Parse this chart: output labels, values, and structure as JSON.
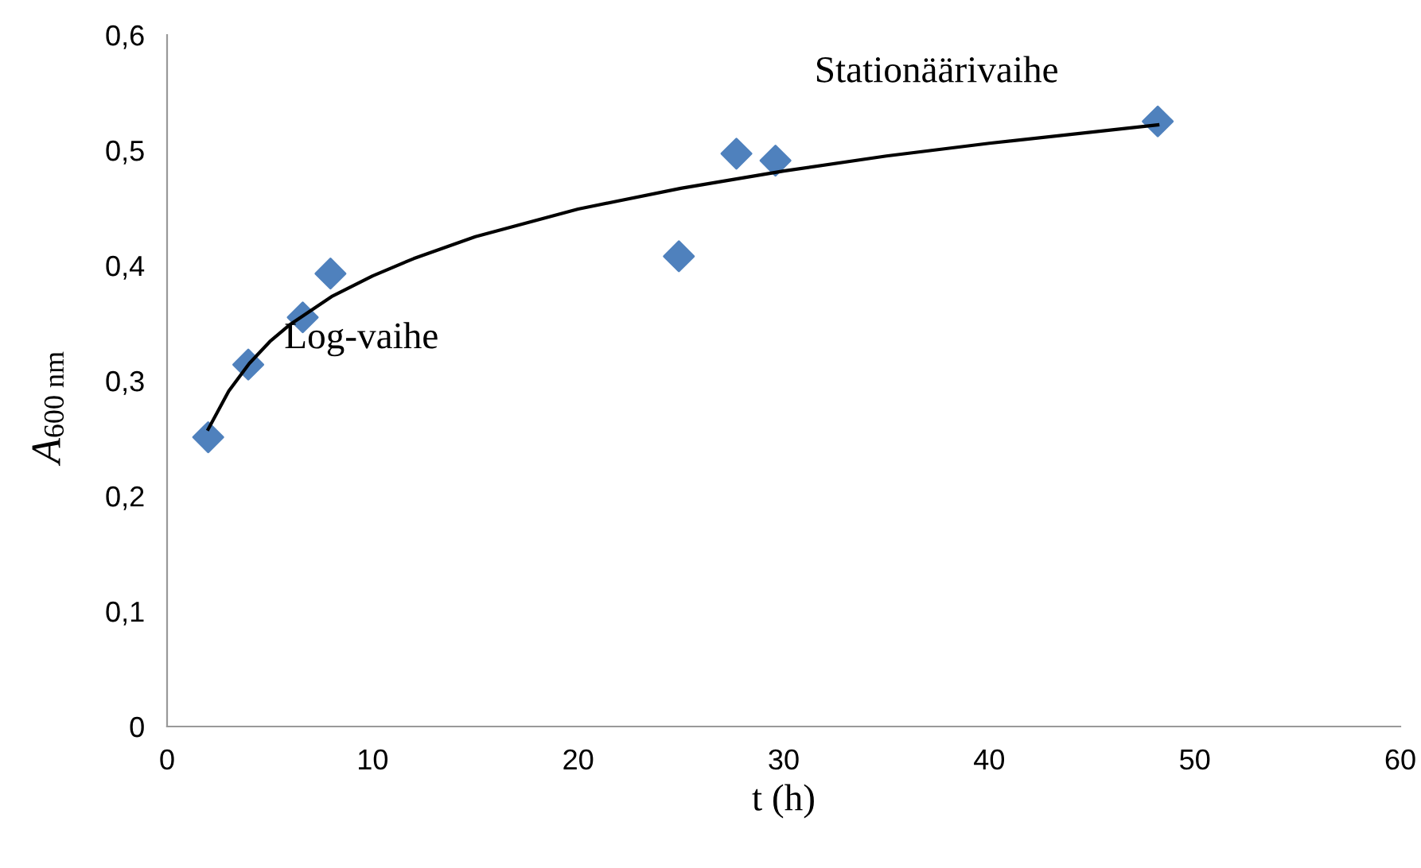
{
  "chart_data": {
    "type": "scatter",
    "xlabel": "t (h)",
    "ylabel": "A$_{600 nm}$",
    "series": [
      {
        "color": "#4f81bd",
        "marker": "diamond",
        "x": [
          2.0,
          3.95,
          6.6,
          7.95,
          24.9,
          27.7,
          29.6,
          48.2
        ],
        "values": [
          0.251,
          0.314,
          0.355,
          0.393,
          0.408,
          0.497,
          0.491,
          0.525
        ]
      },
      {
        "type": "line",
        "color": "#000000",
        "marker": "none",
        "line_style": "solid",
        "x": [
          2,
          3,
          4,
          5,
          6,
          8,
          10,
          12,
          15,
          20,
          25,
          30,
          35,
          40,
          48.2
        ],
        "values": [
          0.258,
          0.291,
          0.315,
          0.334,
          0.349,
          0.373,
          0.391,
          0.406,
          0.425,
          0.449,
          0.467,
          0.482,
          0.495,
          0.506,
          0.522
        ]
      }
    ],
    "annotations": [
      "Log-vaihe",
      "Stationäärivaihe"
    ],
    "xlim": [
      0,
      60
    ],
    "xticks": [
      0,
      10,
      20,
      30,
      40,
      50,
      60
    ],
    "ylim": [
      0,
      0.6
    ],
    "yticks": [
      0,
      {
        "value": 0.1,
        "label": "0,1"
      },
      {
        "value": 0.2,
        "label": "0,2"
      },
      {
        "value": 0.3,
        "label": "0,3"
      },
      {
        "value": 0.4,
        "label": "0,4"
      },
      {
        "value": 0.5,
        "label": "0,5"
      },
      {
        "value": 0.6,
        "label": "0,6"
      }
    ],
    "grid": false,
    "legend": false
  }
}
